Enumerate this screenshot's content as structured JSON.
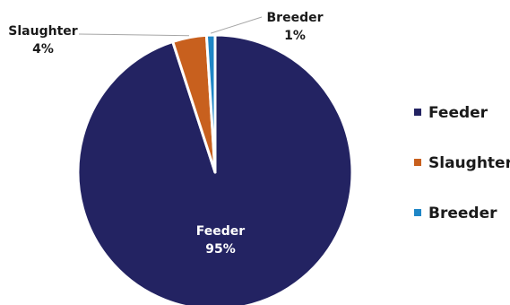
{
  "chart_data": {
    "type": "pie",
    "title": "",
    "start_angle_deg": 0,
    "direction": "clockwise",
    "slices": [
      {
        "label": "Feeder",
        "value": 95,
        "value_label": "95%",
        "color": "#232362"
      },
      {
        "label": "Slaughter",
        "value": 4,
        "value_label": "4%",
        "color": "#c8601e"
      },
      {
        "label": "Breeder",
        "value": 1,
        "value_label": "1%",
        "color": "#1f86c6"
      }
    ],
    "legend": {
      "position": "right",
      "items": [
        "Feeder",
        "Slaughter",
        "Breeder"
      ]
    },
    "data_labels": {
      "Feeder": {
        "name": "Feeder",
        "value": "95%",
        "color": "#ffffff"
      },
      "Slaughter": {
        "name": "Slaughter",
        "value": "4%",
        "color": "#1a1a1a"
      },
      "Breeder": {
        "name": "Breeder",
        "value": "1%",
        "color": "#1a1a1a"
      }
    }
  }
}
